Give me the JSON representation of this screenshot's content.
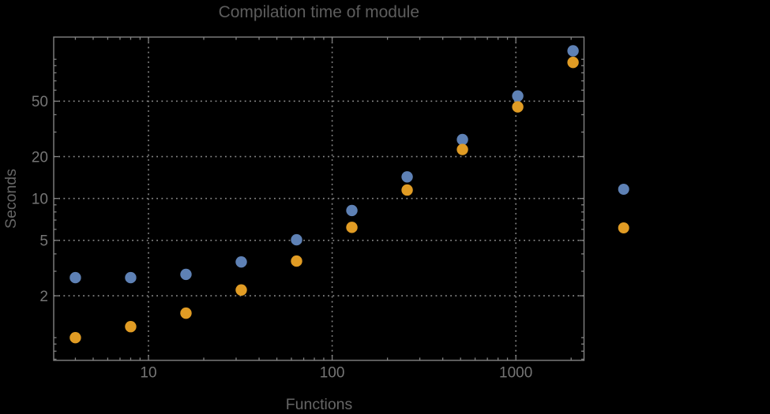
{
  "title": "Compilation time of module",
  "colors": {
    "background": "#000000",
    "series1": "#5E81B5",
    "series2": "#E19C24",
    "frame": "#828282",
    "grid": "#8A8A8A",
    "title_text": "#5D5D5D",
    "axis_label_text": "#666666",
    "tick_label_text": "#757575"
  },
  "chart_data": {
    "type": "scatter",
    "title": "Compilation time of module",
    "xlabel": "Functions",
    "ylabel": "Seconds",
    "x_axis": {
      "label": "Functions",
      "scale": "log",
      "tick_labels": [
        "10",
        "100",
        "1000"
      ],
      "ticks": [
        10,
        100,
        1000
      ],
      "range": [
        3.05,
        2370
      ]
    },
    "y_axis": {
      "label": "Seconds",
      "scale": "log",
      "tick_labels": [
        "2",
        "5",
        "10",
        "20",
        "50"
      ],
      "ticks": [
        2,
        5,
        10,
        20,
        50
      ],
      "range": [
        0.67,
        144
      ]
    },
    "grid": "dotted",
    "x": [
      4,
      8,
      16,
      32,
      64,
      128,
      256,
      512,
      1024,
      2048
    ],
    "series": [
      {
        "name": "series-1",
        "color": "#5E81B5",
        "values": [
          2.7,
          2.7,
          2.85,
          3.5,
          5.05,
          8.2,
          14.3,
          26.5,
          54.5,
          115
        ]
      },
      {
        "name": "series-2",
        "color": "#E19C24",
        "values": [
          1.0,
          1.2,
          1.5,
          2.2,
          3.55,
          6.2,
          11.5,
          22.5,
          45.5,
          95
        ]
      }
    ],
    "legend": {
      "position": "right-of-frame",
      "labels_visible": false,
      "entries": [
        {
          "series": "series-1",
          "label": ""
        },
        {
          "series": "series-2",
          "label": ""
        }
      ]
    }
  }
}
